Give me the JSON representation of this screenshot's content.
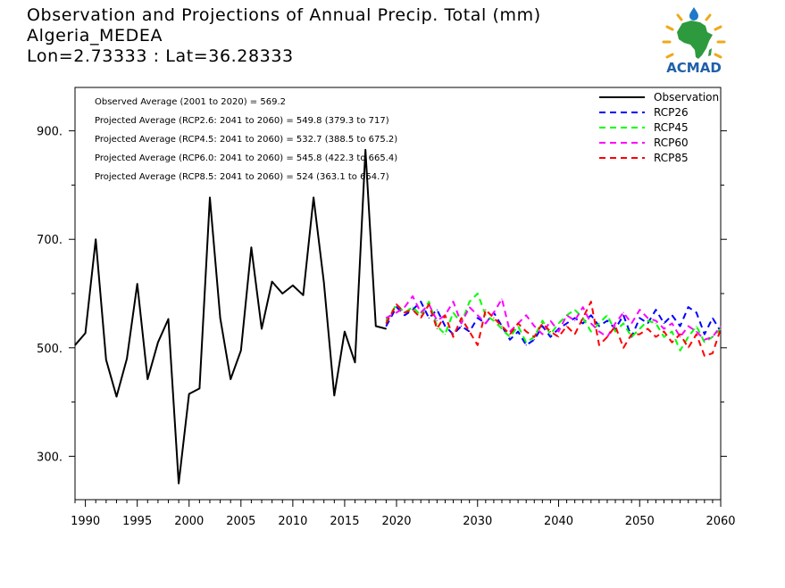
{
  "header": {
    "title": "Observation and Projections of Annual Precip. Total (mm)",
    "location": "Algeria_MEDEA",
    "coords": "Lon=2.73333 : Lat=36.28333"
  },
  "logo": {
    "text": "ACMAD",
    "colors": {
      "africa": "#2e9a3e",
      "rays": "#f0a81a",
      "text": "#1f5fa8",
      "drop": "#1f78c8"
    }
  },
  "colors": {
    "observation": "#000000",
    "RCP26": "#0000ff",
    "RCP45": "#00ff00",
    "RCP60": "#ff00ff",
    "RCP85": "#ff0000"
  },
  "chart_data": {
    "type": "line",
    "title": "Observation and Projections of Annual Precip. Total (mm)",
    "xlabel": "",
    "ylabel": "",
    "xlim": [
      1989,
      2060
    ],
    "ylim": [
      220,
      980
    ],
    "xticks": [
      1990,
      1995,
      2000,
      2005,
      2010,
      2015,
      2020,
      2030,
      2040,
      2050,
      2060
    ],
    "xtick_labels": [
      "1990",
      "1995",
      "2000",
      "2005",
      "2010",
      "2015",
      "2020",
      "2030",
      "2040",
      "2050",
      "2060"
    ],
    "yticks": [
      300,
      500,
      700,
      900
    ],
    "ytick_labels": [
      "300.",
      "500.",
      "700.",
      "900."
    ],
    "legend_position": "top-right",
    "annotations": [
      "Observed Average (2001 to 2020) = 569.2",
      "Projected Average (RCP2.6: 2041 to 2060) = 549.8 (379.3 to 717)",
      "Projected Average (RCP4.5: 2041 to 2060) = 532.7 (388.5 to 675.2)",
      "Projected Average (RCP6.0: 2041 to 2060) = 545.8 (422.3 to 665.4)",
      "Projected Average (RCP8.5: 2041 to 2060) = 524 (363.1 to 654.7)"
    ],
    "series": [
      {
        "name": "Observation",
        "style": "solid",
        "x": [
          1989,
          1990,
          1991,
          1992,
          1993,
          1994,
          1995,
          1996,
          1997,
          1998,
          1999,
          2000,
          2001,
          2002,
          2003,
          2004,
          2005,
          2006,
          2007,
          2008,
          2009,
          2010,
          2011,
          2012,
          2013,
          2014,
          2015,
          2016,
          2017,
          2018,
          2019
        ],
        "y": [
          505,
          527,
          700,
          478,
          410,
          480,
          618,
          442,
          510,
          553,
          250,
          415,
          425,
          777,
          555,
          442,
          495,
          685,
          535,
          622,
          600,
          615,
          597,
          777,
          620,
          412,
          530,
          473,
          865,
          540,
          535
        ]
      },
      {
        "name": "RCP26",
        "style": "dashed",
        "x": [
          2019,
          2020,
          2021,
          2022,
          2023,
          2024,
          2025,
          2026,
          2027,
          2028,
          2029,
          2030,
          2031,
          2032,
          2033,
          2034,
          2035,
          2036,
          2037,
          2038,
          2039,
          2040,
          2041,
          2042,
          2043,
          2044,
          2045,
          2046,
          2047,
          2048,
          2049,
          2050,
          2051,
          2052,
          2053,
          2054,
          2055,
          2056,
          2057,
          2058,
          2059,
          2060
        ],
        "y": [
          540,
          575,
          560,
          570,
          585,
          555,
          570,
          540,
          525,
          540,
          530,
          555,
          545,
          565,
          540,
          515,
          530,
          505,
          515,
          540,
          520,
          535,
          545,
          555,
          545,
          560,
          540,
          550,
          535,
          560,
          520,
          555,
          545,
          570,
          545,
          560,
          540,
          575,
          565,
          525,
          555,
          530
        ]
      },
      {
        "name": "RCP45",
        "style": "dashed",
        "x": [
          2019,
          2020,
          2021,
          2022,
          2023,
          2024,
          2025,
          2026,
          2027,
          2028,
          2029,
          2030,
          2031,
          2032,
          2033,
          2034,
          2035,
          2036,
          2037,
          2038,
          2039,
          2040,
          2041,
          2042,
          2043,
          2044,
          2045,
          2046,
          2047,
          2048,
          2049,
          2050,
          2051,
          2052,
          2053,
          2054,
          2055,
          2056,
          2057,
          2058,
          2059,
          2060
        ],
        "y": [
          550,
          580,
          565,
          575,
          560,
          585,
          540,
          525,
          565,
          545,
          585,
          600,
          560,
          550,
          535,
          520,
          540,
          510,
          520,
          550,
          525,
          545,
          560,
          570,
          555,
          530,
          545,
          560,
          530,
          545,
          520,
          535,
          550,
          545,
          520,
          530,
          495,
          520,
          540,
          510,
          520,
          535
        ]
      },
      {
        "name": "RCP60",
        "style": "dashed",
        "x": [
          2019,
          2020,
          2021,
          2022,
          2023,
          2024,
          2025,
          2026,
          2027,
          2028,
          2029,
          2030,
          2031,
          2032,
          2033,
          2034,
          2035,
          2036,
          2037,
          2038,
          2039,
          2040,
          2041,
          2042,
          2043,
          2044,
          2045,
          2046,
          2047,
          2048,
          2049,
          2050,
          2051,
          2052,
          2053,
          2054,
          2055,
          2056,
          2057,
          2058,
          2059,
          2060
        ],
        "y": [
          555,
          565,
          575,
          595,
          565,
          580,
          550,
          560,
          585,
          545,
          575,
          560,
          545,
          565,
          590,
          530,
          545,
          560,
          540,
          525,
          550,
          530,
          560,
          550,
          575,
          545,
          530,
          520,
          545,
          565,
          545,
          570,
          555,
          550,
          535,
          545,
          520,
          540,
          530,
          515,
          520,
          540
        ]
      },
      {
        "name": "RCP85",
        "style": "dashed",
        "x": [
          2019,
          2020,
          2021,
          2022,
          2023,
          2024,
          2025,
          2026,
          2027,
          2028,
          2029,
          2030,
          2031,
          2032,
          2033,
          2034,
          2035,
          2036,
          2037,
          2038,
          2039,
          2040,
          2041,
          2042,
          2043,
          2044,
          2045,
          2046,
          2047,
          2048,
          2049,
          2050,
          2051,
          2052,
          2053,
          2054,
          2055,
          2056,
          2057,
          2058,
          2059,
          2060
        ],
        "y": [
          545,
          580,
          565,
          570,
          555,
          580,
          535,
          560,
          520,
          555,
          530,
          505,
          570,
          555,
          540,
          525,
          545,
          530,
          520,
          545,
          530,
          520,
          540,
          525,
          555,
          585,
          505,
          520,
          540,
          500,
          525,
          525,
          535,
          520,
          530,
          510,
          525,
          500,
          525,
          485,
          490,
          535
        ]
      }
    ]
  }
}
